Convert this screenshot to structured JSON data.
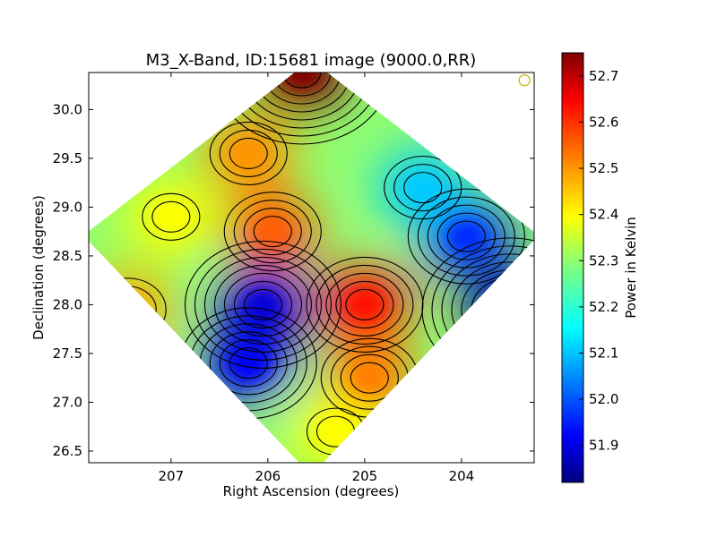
{
  "chart_data": {
    "type": "heatmap",
    "title": "M3_X-Band, ID:15681 image (9000.0,RR)",
    "xlabel": "Right Ascension (degrees)",
    "ylabel": "Declination (degrees)",
    "xlim": [
      207.85,
      203.25
    ],
    "ylim": [
      26.38,
      30.38
    ],
    "x_ticks": [
      207,
      206,
      205,
      204
    ],
    "x_tick_labels": [
      "207",
      "206",
      "205",
      "204"
    ],
    "y_ticks": [
      26.5,
      27.0,
      27.5,
      28.0,
      28.5,
      29.0,
      29.5,
      30.0
    ],
    "y_tick_labels": [
      "26.5",
      "27.0",
      "27.5",
      "28.0",
      "28.5",
      "29.0",
      "29.5",
      "30.0"
    ],
    "colorbar": {
      "label": "Power in Kelvin",
      "range": [
        51.82,
        52.75
      ],
      "ticks": [
        51.9,
        52.0,
        52.1,
        52.2,
        52.3,
        52.4,
        52.5,
        52.6,
        52.7
      ],
      "tick_labels": [
        "51.9",
        "52.0",
        "52.1",
        "52.2",
        "52.3",
        "52.4",
        "52.5",
        "52.6",
        "52.7"
      ],
      "colormap": "jet"
    },
    "background_level": 52.3,
    "features": [
      {
        "ra": 205.65,
        "dec": 30.38,
        "value": 52.75
      },
      {
        "ra": 205.0,
        "dec": 28.0,
        "value": 52.62
      },
      {
        "ra": 204.95,
        "dec": 27.25,
        "value": 52.52
      },
      {
        "ra": 205.95,
        "dec": 28.75,
        "value": 52.55
      },
      {
        "ra": 206.2,
        "dec": 29.55,
        "value": 52.5
      },
      {
        "ra": 207.45,
        "dec": 27.95,
        "value": 52.48
      },
      {
        "ra": 207.0,
        "dec": 28.9,
        "value": 52.4
      },
      {
        "ra": 205.3,
        "dec": 26.7,
        "value": 52.4
      },
      {
        "ra": 206.05,
        "dec": 28.0,
        "value": 51.9
      },
      {
        "ra": 206.2,
        "dec": 27.4,
        "value": 51.93
      },
      {
        "ra": 203.5,
        "dec": 27.95,
        "value": 51.84
      },
      {
        "ra": 203.95,
        "dec": 28.7,
        "value": 51.97
      },
      {
        "ra": 204.4,
        "dec": 29.2,
        "value": 52.12
      }
    ],
    "marker": {
      "ra": 203.35,
      "dec": 30.3,
      "shape": "circle",
      "color": "#c8b400"
    },
    "contours": "black"
  }
}
